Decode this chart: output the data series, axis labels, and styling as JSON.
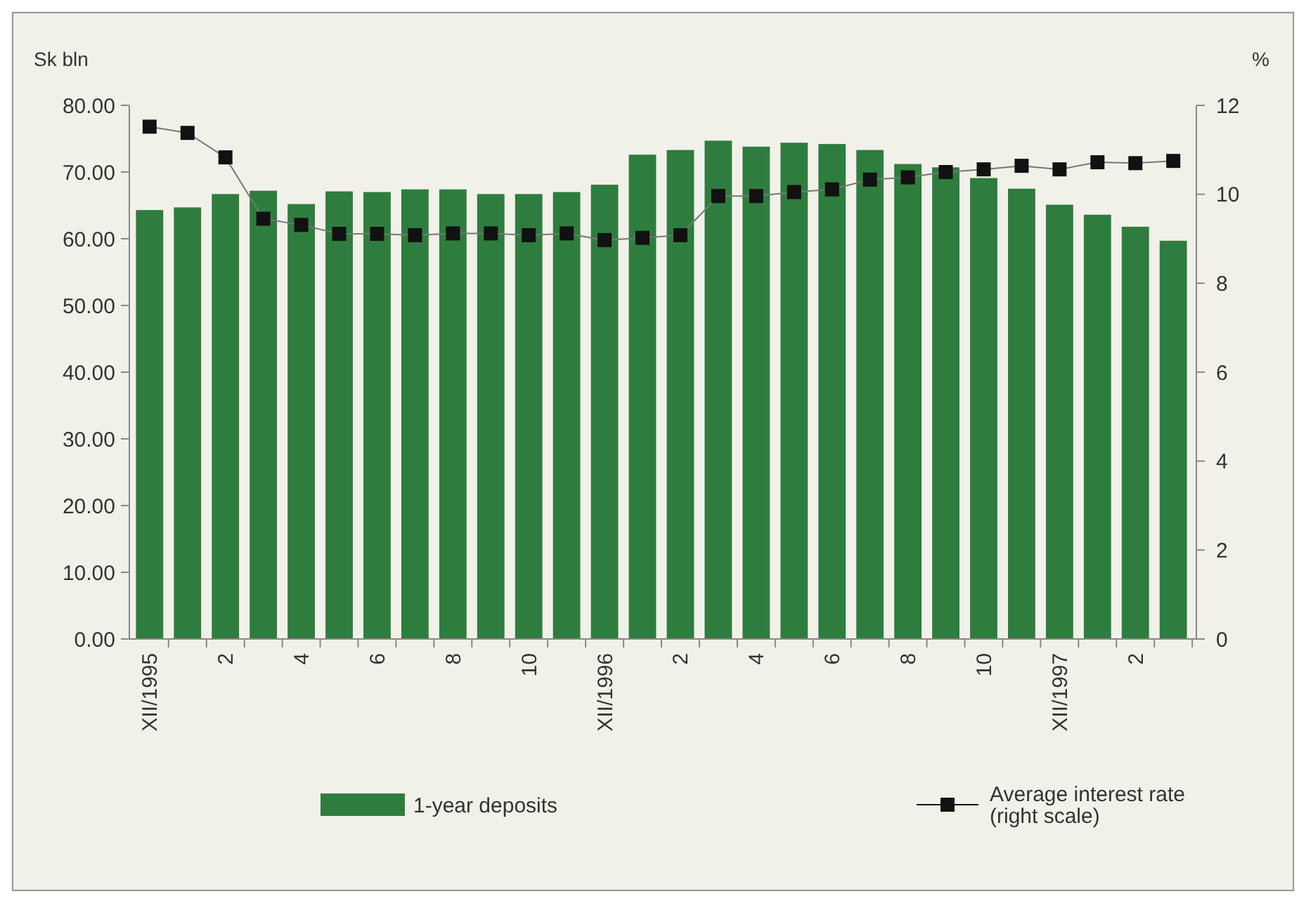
{
  "chart_data": {
    "type": "bar",
    "ylabel": "Sk bln",
    "y2label": "%",
    "categories": [
      "XII/1995",
      null,
      "2",
      null,
      "4",
      null,
      "6",
      null,
      "8",
      null,
      "10",
      null,
      "XII/1996",
      null,
      "2",
      null,
      "4",
      null,
      "6",
      null,
      "8",
      null,
      "10",
      null,
      "XII/1997",
      null,
      "2",
      null
    ],
    "series": [
      {
        "name": "1-year deposits",
        "color": "#2e7d3e",
        "values": [
          64.3,
          64.7,
          66.7,
          67.2,
          65.2,
          67.1,
          67.0,
          67.4,
          67.4,
          66.7,
          66.7,
          67.0,
          68.1,
          72.6,
          73.3,
          74.7,
          73.8,
          74.4,
          74.2,
          73.3,
          71.2,
          70.7,
          69.1,
          67.5,
          65.1,
          63.6,
          61.8,
          59.7
        ]
      },
      {
        "name": "Average interest rate (right scale)",
        "type": "line",
        "axis": "y2",
        "color": "#111111",
        "marker": "square",
        "values": [
          11.52,
          11.38,
          10.83,
          9.45,
          9.31,
          9.11,
          9.11,
          9.08,
          9.12,
          9.12,
          9.08,
          9.12,
          8.97,
          9.02,
          9.08,
          9.96,
          9.96,
          10.05,
          10.11,
          10.33,
          10.38,
          10.5,
          10.56,
          10.64,
          10.56,
          10.72,
          10.7,
          10.75
        ]
      }
    ],
    "ylim": [
      0,
      80
    ],
    "yticks": [
      {
        "value": 0,
        "label": "0.00"
      },
      {
        "value": 10,
        "label": "10.00"
      },
      {
        "value": 20,
        "label": "20.00"
      },
      {
        "value": 30,
        "label": "30.00"
      },
      {
        "value": 40,
        "label": "40.00"
      },
      {
        "value": 50,
        "label": "50.00"
      },
      {
        "value": 60,
        "label": "60.00"
      },
      {
        "value": 70,
        "label": "70.00"
      },
      {
        "value": 80,
        "label": "80.00"
      }
    ],
    "y2lim": [
      0,
      12
    ],
    "y2ticks": [
      0,
      2,
      4,
      6,
      8,
      10,
      12
    ],
    "grid": false,
    "legend": "bottom"
  }
}
